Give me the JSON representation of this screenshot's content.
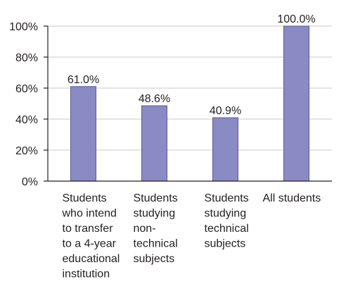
{
  "chart_data": {
    "type": "bar",
    "categories": [
      "Students who intend to transfer to a 4-year educational institution",
      "Students studying non-technical subjects",
      "Students studying technical subjects",
      "All students"
    ],
    "category_label_lines": [
      [
        "Students",
        "who intend",
        "to transfer",
        "to a 4-year",
        "educational",
        "institution"
      ],
      [
        "Students",
        "studying",
        "non-",
        "technical",
        "subjects"
      ],
      [
        "Students",
        "studying",
        "technical",
        "subjects"
      ],
      [
        "All students"
      ]
    ],
    "values": [
      61.0,
      48.6,
      40.9,
      100.0
    ],
    "data_labels": [
      "61.0%",
      "48.6%",
      "40.9%",
      "100.0%"
    ],
    "yticks": [
      0,
      20,
      40,
      60,
      80,
      100
    ],
    "ytick_labels": [
      "0%",
      "20%",
      "40%",
      "60%",
      "80%",
      "100%"
    ],
    "ylim": [
      0,
      100
    ],
    "grid": true,
    "bar_color": "#8a8ac4",
    "title": "",
    "xlabel": "",
    "ylabel": ""
  }
}
